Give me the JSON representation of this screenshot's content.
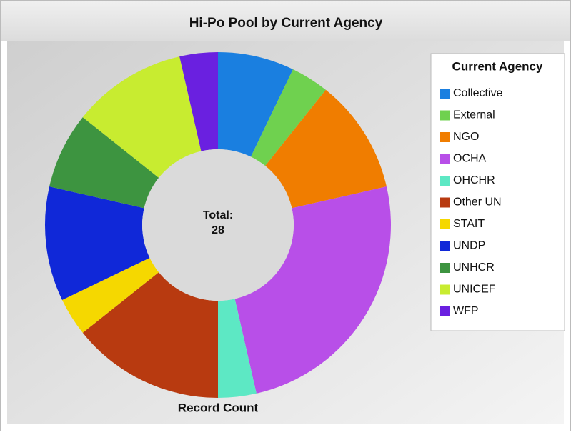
{
  "chart_data": {
    "type": "donut",
    "title": "Hi-Po Pool by Current Agency",
    "legend_title": "Current Agency",
    "legend": "right",
    "center_label": "Total:",
    "total": 28,
    "value_label": "Record Count",
    "categories": [
      "Collective",
      "External",
      "NGO",
      "OCHA",
      "OHCHR",
      "Other UN",
      "STAIT",
      "UNDP",
      "UNHCR",
      "UNICEF",
      "WFP"
    ],
    "values": [
      2,
      1,
      3,
      7,
      1,
      4,
      1,
      3,
      2,
      3,
      1
    ],
    "colors": [
      "#1a7fe0",
      "#6fd14f",
      "#f07d00",
      "#b84fe8",
      "#5de8c4",
      "#b83a10",
      "#f5d800",
      "#1028d8",
      "#3d9440",
      "#c8ec30",
      "#6a20e0"
    ]
  }
}
